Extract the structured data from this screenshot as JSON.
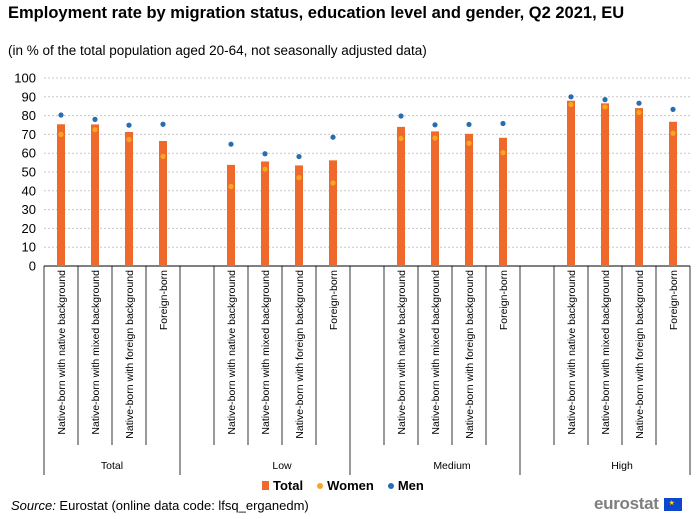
{
  "title": "Employment rate by migration status, education level and gender, Q2 2021, EU",
  "subtitle": "(in % of the total population aged 20-64, not seasonally adjusted data)",
  "source_label": "Source:",
  "source_text": " Eurostat (online data code: lfsq_erganedm)",
  "logo_text": "eurostat",
  "legend": {
    "total": "Total",
    "women": "Women",
    "men": "Men"
  },
  "colors": {
    "total": "#ef6a2a",
    "women": "#f6a623",
    "men": "#2a6cb0",
    "grid": "#c8c8c8"
  },
  "chart_data": {
    "type": "bar",
    "title": "Employment rate by migration status, education level and gender, Q2 2021, EU",
    "subtitle": "(in % of the total population aged 20-64, not seasonally adjusted data)",
    "ylim": [
      0,
      100
    ],
    "yticks": [
      0,
      10,
      20,
      30,
      40,
      50,
      60,
      70,
      80,
      90,
      100
    ],
    "grid": true,
    "legend_position": "bottom",
    "groups": [
      {
        "label": "Total",
        "categories": [
          "Native-born with native background",
          "Native-born with mixed background",
          "Native-born with foreign background",
          "Foreign-born"
        ],
        "total": [
          75.4,
          75.3,
          71.3,
          66.5
        ],
        "women": [
          70.0,
          72.5,
          67.3,
          58.3
        ],
        "men": [
          80.3,
          78.0,
          74.9,
          75.4
        ]
      },
      {
        "label": "Low",
        "categories": [
          "Native-born with native background",
          "Native-born with mixed background",
          "Native-born with foreign background",
          "Foreign-born"
        ],
        "total": [
          53.8,
          55.6,
          53.5,
          56.2
        ],
        "women": [
          42.3,
          51.5,
          47.0,
          44.2
        ],
        "men": [
          64.8,
          59.7,
          58.2,
          68.5
        ]
      },
      {
        "label": "Medium",
        "categories": [
          "Native-born with native background",
          "Native-born with mixed background",
          "Native-born with foreign background",
          "Foreign-born"
        ],
        "total": [
          74.0,
          71.6,
          70.3,
          68.2
        ],
        "women": [
          67.8,
          68.0,
          65.3,
          60.3
        ],
        "men": [
          79.8,
          75.1,
          75.3,
          75.8
        ]
      },
      {
        "label": "High",
        "categories": [
          "Native-born with native background",
          "Native-born with mixed background",
          "Native-born with foreign background",
          "Foreign-born"
        ],
        "total": [
          87.9,
          86.5,
          84.0,
          76.7
        ],
        "women": [
          85.9,
          84.6,
          81.7,
          70.6
        ],
        "men": [
          90.0,
          88.5,
          86.6,
          83.3
        ]
      }
    ]
  }
}
